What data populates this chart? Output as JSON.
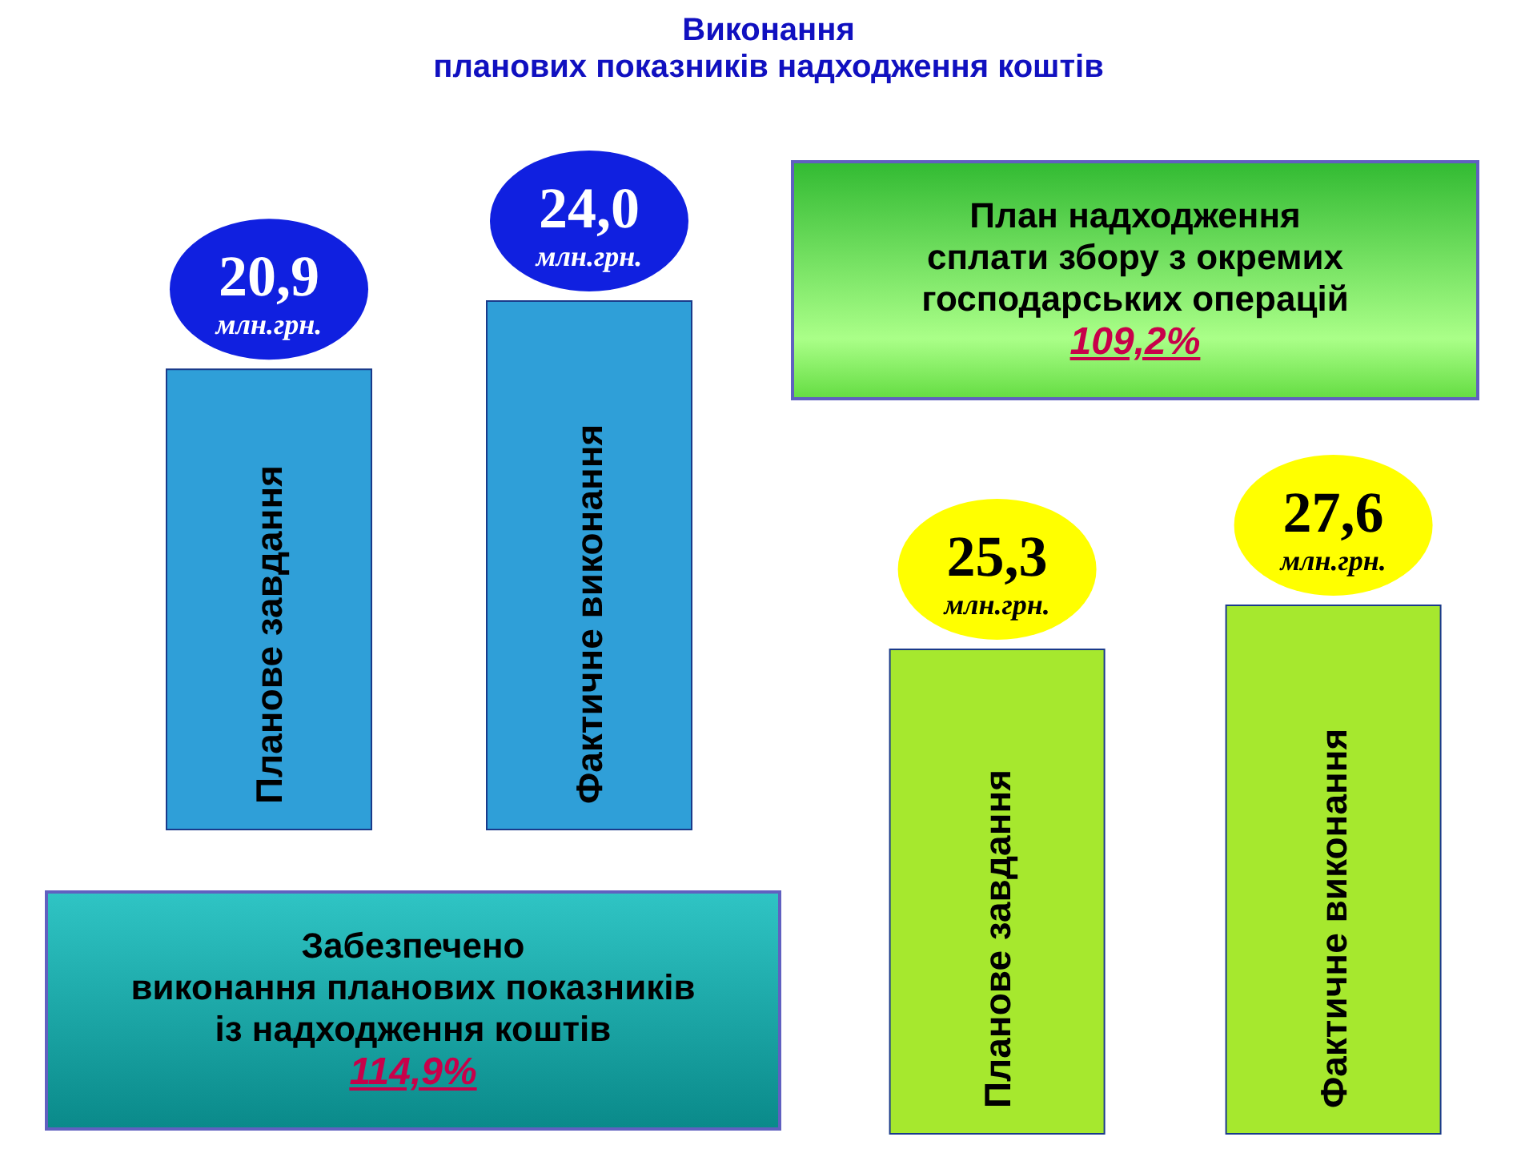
{
  "chart_data": [
    {
      "type": "bar",
      "title": "Виконання\nпланових показників надходження коштів",
      "categories": [
        "Планове завдання",
        "Фактичне виконання"
      ],
      "values": [
        20.9,
        24.0
      ],
      "colors": [
        "#2f9fd8",
        "#2f9fd8"
      ],
      "data_labels": true,
      "value_labels": [
        "20,9\nмлн.грн.",
        "24,0\nмлн.грн."
      ],
      "annotations": [
        "Забезпечено\nвиконання планових показників\nіз надходження коштів",
        "114,9%"
      ]
    },
    {
      "type": "bar",
      "categories": [
        "Планове завдання",
        "Фактичне виконання"
      ],
      "values": [
        25.3,
        27.6
      ],
      "colors": [
        "#a6e82e",
        "#a6e82e"
      ],
      "data_labels": true,
      "value_labels": [
        "25,3\nмлн.грн.",
        "27,6\nмлн.грн."
      ],
      "annotations": [
        "План надходження\nсплати збору з окремих\nгосподарських операцій",
        "109,2%"
      ]
    }
  ]
}
